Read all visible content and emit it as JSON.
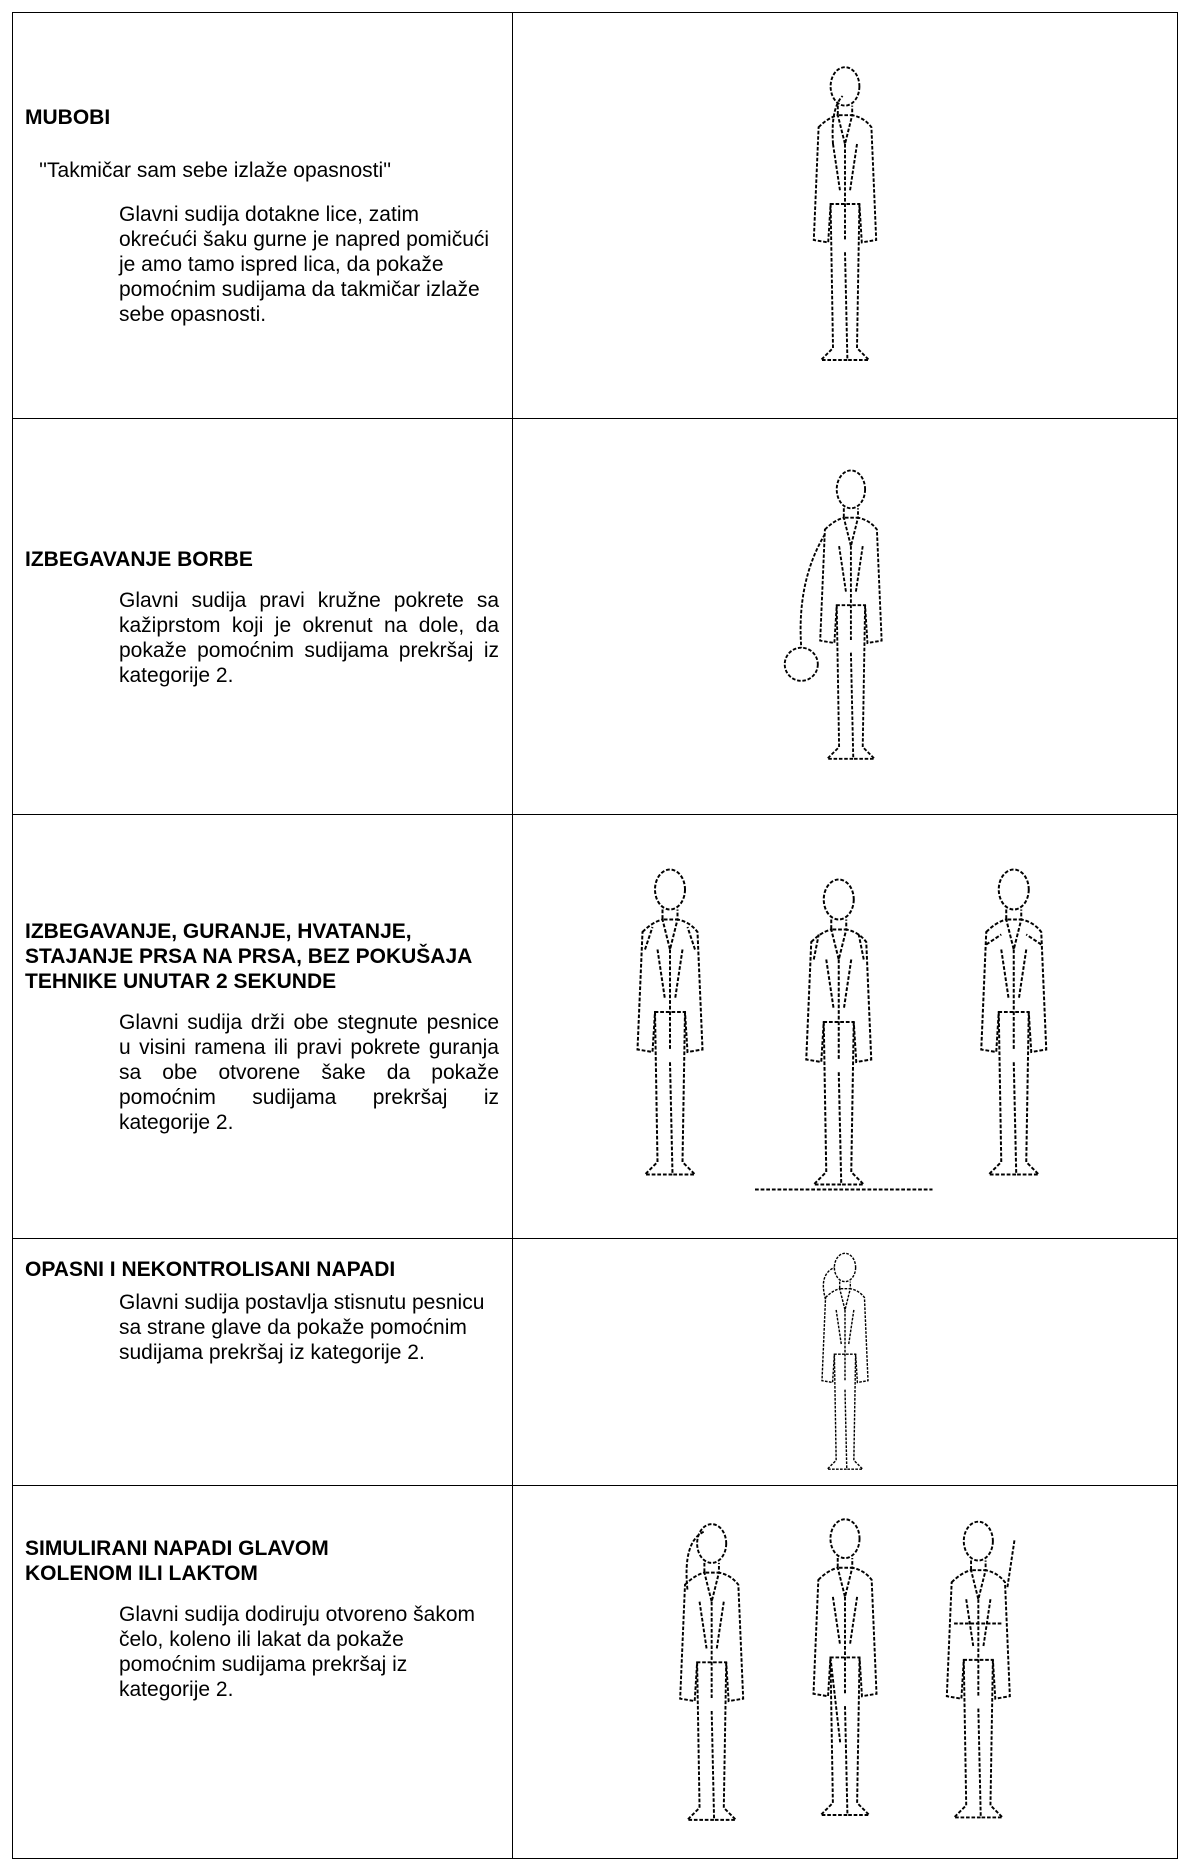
{
  "rows": [
    {
      "title": "MUBOBI",
      "quote": "''Takmičar sam sebe izlaže opasnosti''",
      "description": "Glavni sudija dotakne lice, zatim okrećući šaku gurne je napred pomičući je amo tamo ispred lica, da pokaže pomoćnim sudijama da takmičar izlaže sebe opasnosti."
    },
    {
      "title": "IZBEGAVANJE BORBE",
      "description": "Glavni sudija pravi kružne pokrete sa kažiprstom koji je okrenut na dole, da pokaže pomoćnim sudijama prekršaj iz kategorije 2."
    },
    {
      "title": "IZBEGAVANJE, GURANJE, HVATANJE, STAJANJE PRSA NA PRSA, BEZ POKUŠAJA TEHNIKE UNUTAR 2 SEKUNDE",
      "description": "Glavni sudija drži obe stegnute pesnice u visini ramena ili pravi pokrete guranja sa obe otvorene šake da pokaže pomoćnim sudijama prekršaj iz kategorije 2."
    },
    {
      "title": "OPASNI I NEKONTROLISANI NAPADI",
      "description": "Glavni sudija postavlja stisnutu pesnicu sa strane glave da pokaže pomoćnim sudijama prekršaj iz kategorije 2."
    },
    {
      "title": "SIMULIRANI NAPADI GLAVOM KOLENOM ILI LAKTOM",
      "description": "Glavni sudija dodiruju otvoreno šakom čelo, koleno ili lakat da pokaže pomoćnim sudijama prekršaj iz kategorije 2."
    }
  ]
}
